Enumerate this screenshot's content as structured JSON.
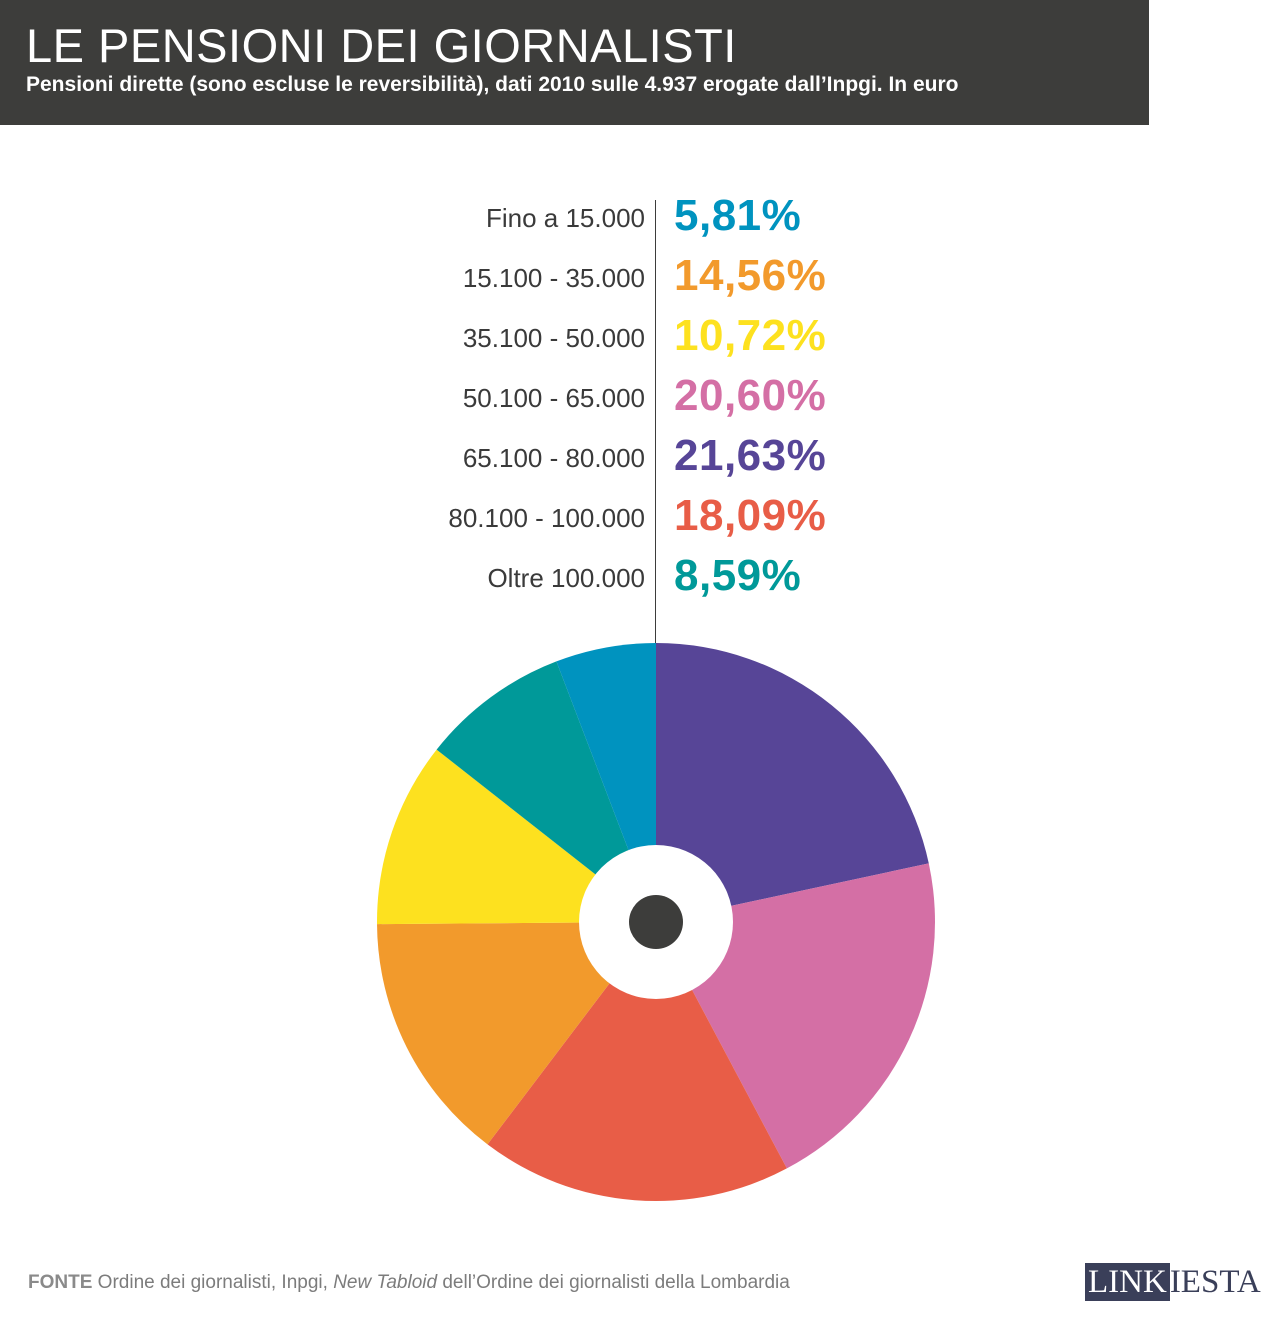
{
  "header": {
    "title": "LE PENSIONI DEI GIORNALISTI",
    "subtitle": "Pensioni dirette (sono escluse le reversibilità), dati 2010 sulle 4.937 erogate dall’Inpgi. In euro"
  },
  "colors": {
    "header_bg": "#3d3d3b",
    "center_dot": "#3d3d3b"
  },
  "chart_data": {
    "type": "pie",
    "title": "LE PENSIONI DEI GIORNALISTI",
    "categories": [
      "Fino a 15.000",
      "15.100 - 35.000",
      "35.100 - 50.000",
      "50.100 - 65.000",
      "65.100 - 80.000",
      "80.100 - 100.000",
      "Oltre 100.000"
    ],
    "values": [
      5.81,
      14.56,
      10.72,
      20.6,
      21.63,
      18.09,
      8.59
    ],
    "labels": [
      "5,81%",
      "14,56%",
      "10,72%",
      "20,60%",
      "21,63%",
      "18,09%",
      "8,59%"
    ],
    "colors": [
      "#0093bf",
      "#f29a2c",
      "#fde11f",
      "#d46fa5",
      "#574597",
      "#e85d47",
      "#009999"
    ],
    "unit": "%",
    "slice_order_clockwise_from_top": [
      4,
      3,
      5,
      1,
      2,
      6,
      0
    ],
    "donut_hole": true
  },
  "footer": {
    "source_label": "FONTE",
    "source_text_1": " Ordine dei giornalisti, Inpgi, ",
    "source_italic": "New Tabloid",
    "source_text_2": " dell’Ordine dei giornalisti della Lombardia",
    "logo_part1": "LINK",
    "logo_part2": "IESTA"
  }
}
